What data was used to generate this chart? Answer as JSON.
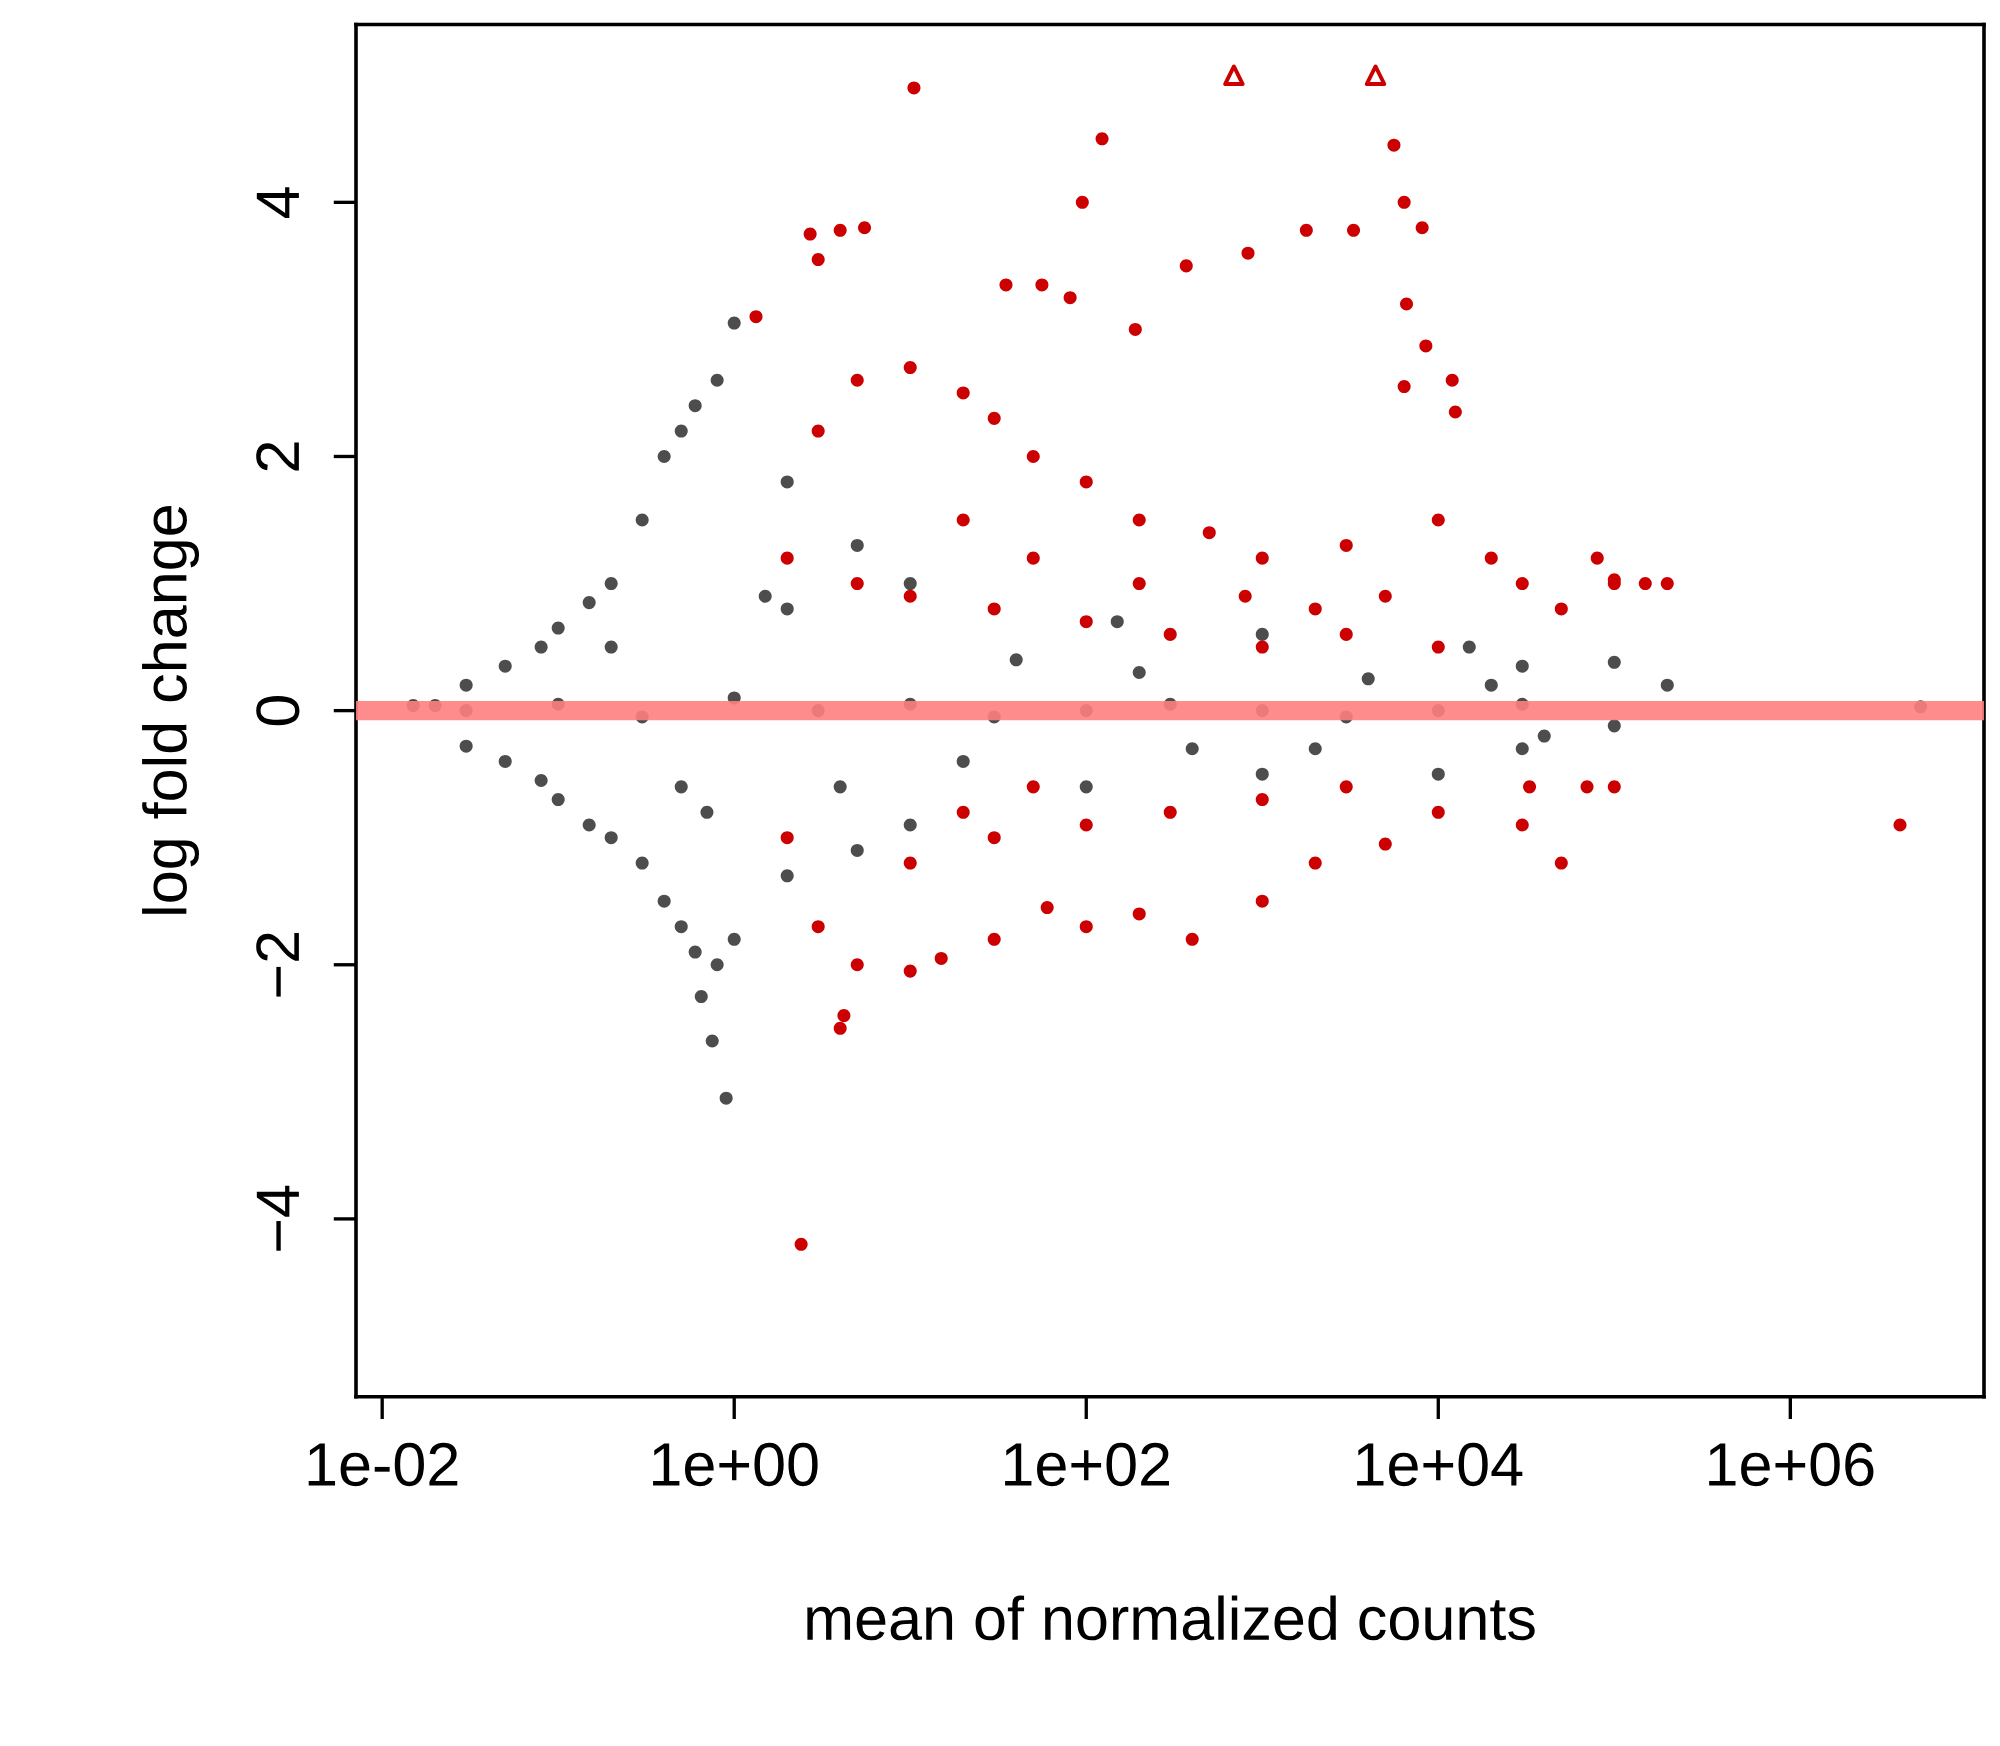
{
  "chart_data": {
    "type": "scatter",
    "xlabel": "mean of normalized counts",
    "ylabel": "log fold change",
    "log": "x",
    "grid": false,
    "legend": false,
    "xlim": [
      0.0071,
      12600000
    ],
    "ylim": [
      -5.4,
      5.4
    ],
    "xticks": [
      {
        "value": 0.01,
        "label": "1e-02"
      },
      {
        "value": 1,
        "label": "1e+00"
      },
      {
        "value": 100,
        "label": "1e+02"
      },
      {
        "value": 10000,
        "label": "1e+04"
      },
      {
        "value": 1000000,
        "label": "1e+06"
      }
    ],
    "yticks": [
      {
        "value": -4,
        "label": "−4"
      },
      {
        "value": -2,
        "label": "−2"
      },
      {
        "value": 0,
        "label": "0"
      },
      {
        "value": 2,
        "label": "2"
      },
      {
        "value": 4,
        "label": "4"
      }
    ],
    "ref_lines": [
      {
        "axis": "y",
        "value": 0,
        "color": "#ff8080"
      }
    ],
    "series": [
      {
        "color": "#4d4d4d",
        "marker": "circle",
        "x": [
          0.015,
          0.02,
          0.03,
          0.03,
          0.05,
          0.05,
          0.08,
          0.08,
          0.1,
          0.1,
          0.15,
          0.15,
          0.2,
          0.2,
          0.3,
          0.3,
          0.4,
          0.4,
          0.5,
          0.5,
          0.6,
          0.6,
          0.8,
          0.8,
          1,
          1,
          0.65,
          0.75,
          0.9,
          2,
          2,
          5,
          5,
          10,
          10,
          150,
          100,
          1000,
          1000,
          15000,
          10000,
          30000,
          30000,
          100000,
          100000,
          200000,
          5500000,
          0.03,
          0.1,
          0.3,
          1,
          3,
          10,
          30,
          100,
          300,
          1000,
          3000,
          10000,
          30000,
          0.5,
          2,
          20,
          200,
          2000,
          20000,
          0.2,
          0.7,
          1.5,
          4,
          40,
          400,
          4000,
          40000
        ],
        "values": [
          0.04,
          0.04,
          0.2,
          -0.28,
          0.35,
          -0.4,
          0.5,
          -0.55,
          0.65,
          -0.7,
          0.85,
          -0.9,
          1.0,
          -1.0,
          1.5,
          -1.2,
          2.0,
          -1.5,
          2.2,
          -1.7,
          2.4,
          -1.9,
          2.6,
          -2.0,
          3.05,
          -1.8,
          -2.25,
          -2.6,
          -3.05,
          1.8,
          -1.3,
          1.3,
          -1.1,
          1.0,
          -0.9,
          0.7,
          -0.6,
          0.6,
          -0.5,
          0.5,
          -0.5,
          0.35,
          -0.3,
          0.38,
          -0.12,
          0.2,
          0.03,
          0.0,
          0.05,
          -0.05,
          0.1,
          0.0,
          0.05,
          -0.05,
          0.0,
          0.05,
          0.0,
          -0.05,
          0.0,
          0.05,
          -0.6,
          0.8,
          -0.4,
          0.3,
          -0.3,
          0.2,
          0.5,
          -0.8,
          0.9,
          -0.6,
          0.4,
          -0.3,
          0.25,
          -0.2
        ]
      },
      {
        "color": "#cc0000",
        "marker": "circle",
        "x": [
          10.5,
          123,
          95,
          5600,
          6400,
          8100,
          830,
          3300,
          1780,
          6600,
          8500,
          2.7,
          4,
          5.5,
          3,
          1.33,
          35,
          56,
          81,
          190,
          370,
          6400,
          12000,
          12500,
          3,
          5,
          10,
          20,
          30,
          50,
          100,
          200,
          500,
          1000,
          3000,
          10000,
          20000,
          30000,
          50000,
          100000,
          150000,
          2,
          5,
          10,
          30,
          100,
          300,
          1000,
          3000,
          10000,
          20,
          50,
          200,
          800,
          2000,
          5000,
          80000,
          2,
          3,
          5,
          4,
          4.2,
          10,
          15,
          30,
          60,
          100,
          200,
          400,
          1000,
          2000,
          5000,
          10,
          30,
          100,
          300,
          1000,
          3000,
          10000,
          30000,
          50000,
          100000,
          70000,
          50,
          20,
          2.4,
          4200000,
          200000,
          100000,
          33000
        ],
        "values": [
          4.9,
          4.5,
          4.0,
          4.45,
          4.0,
          3.8,
          3.6,
          3.78,
          3.78,
          3.2,
          2.87,
          3.75,
          3.78,
          3.8,
          3.55,
          3.1,
          3.35,
          3.35,
          3.25,
          3.0,
          3.5,
          2.55,
          2.6,
          2.35,
          2.2,
          2.6,
          2.7,
          2.5,
          2.3,
          2.0,
          1.8,
          1.5,
          1.4,
          1.2,
          1.3,
          1.5,
          1.2,
          1.0,
          0.8,
          1.0,
          1.0,
          1.2,
          1.0,
          0.9,
          0.8,
          0.7,
          0.6,
          0.5,
          0.6,
          0.5,
          1.5,
          1.2,
          1.0,
          0.9,
          0.8,
          0.9,
          1.2,
          -1.0,
          -1.7,
          -2.0,
          -2.5,
          -2.4,
          -2.05,
          -1.95,
          -1.8,
          -1.55,
          -1.7,
          -1.6,
          -1.8,
          -1.5,
          -1.2,
          -1.05,
          -1.2,
          -1.0,
          -0.9,
          -0.8,
          -0.7,
          -0.6,
          -0.8,
          -0.9,
          -1.2,
          -0.6,
          -0.6,
          -0.6,
          -0.8,
          -4.2,
          -0.9,
          1.0,
          1.03,
          -0.6
        ]
      },
      {
        "color": "#cc0000",
        "marker": "triangle",
        "x": [
          690,
          4400
        ],
        "values": [
          5,
          5
        ]
      }
    ]
  }
}
